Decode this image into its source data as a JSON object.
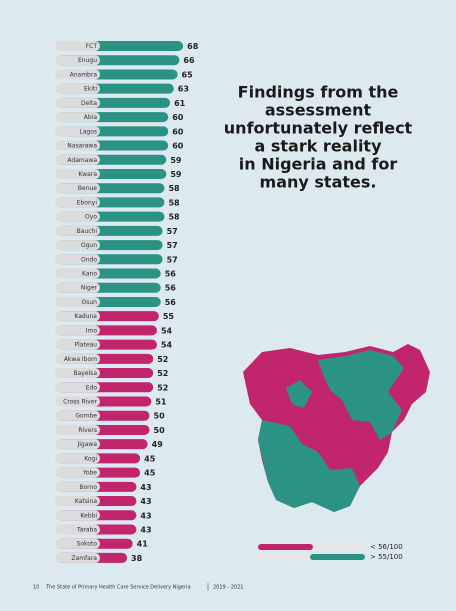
{
  "chart_data": {
    "type": "bar",
    "title_lines": [
      "Findings from the",
      "assessment",
      "unfortunately reflect",
      "a stark reality",
      "in Nigeria and for",
      "many states."
    ],
    "categories": [
      "FCT",
      "Enugu",
      "Anambra",
      "Ekiti",
      "Delta",
      "Abia",
      "Lagos",
      "Nasarawa",
      "Adamawa",
      "Kwara",
      "Benue",
      "Ebonyi",
      "Oyo",
      "Bauchi",
      "Ogun",
      "Ondo",
      "Kano",
      "Niger",
      "Osun",
      "Kaduna",
      "Imo",
      "Plateau",
      "Akwa Ibom",
      "Bayelsa",
      "Edo",
      "Cross River",
      "Gombe",
      "Rivers",
      "Jigawa",
      "Kogi",
      "Yobe",
      "Borno",
      "Katsina",
      "Kebbi",
      "Taraba",
      "Sokoto",
      "Zamfara"
    ],
    "values": [
      68,
      66,
      65,
      63,
      61,
      60,
      60,
      60,
      59,
      59,
      58,
      58,
      58,
      57,
      57,
      57,
      56,
      56,
      56,
      55,
      54,
      54,
      52,
      52,
      52,
      51,
      50,
      50,
      49,
      45,
      45,
      43,
      43,
      43,
      43,
      41,
      38
    ],
    "colors": [
      "#2a9384",
      "#2a9384",
      "#2a9384",
      "#2a9384",
      "#2a9384",
      "#2a9384",
      "#2a9384",
      "#2a9384",
      "#2a9384",
      "#2a9384",
      "#2a9384",
      "#2a9384",
      "#2a9384",
      "#2a9384",
      "#2a9384",
      "#2a9384",
      "#2a9384",
      "#2a9384",
      "#2a9384",
      "#c1266d",
      "#c1266d",
      "#c1266d",
      "#c1266d",
      "#c1266d",
      "#c1266d",
      "#c1266d",
      "#c1266d",
      "#c1266d",
      "#c1266d",
      "#c1266d",
      "#c1266d",
      "#c1266d",
      "#c1266d",
      "#c1266d",
      "#c1266d",
      "#c1266d",
      "#c1266d"
    ],
    "legend": [
      {
        "label": "< 56/100",
        "color": "#c1266d"
      },
      {
        "label": "> 55/100",
        "color": "#2a9384"
      }
    ]
  },
  "footer": {
    "page": "10",
    "publication": "The State of Primary Health Care Service Delivery Nigeria",
    "years": "2019 - 2021"
  }
}
